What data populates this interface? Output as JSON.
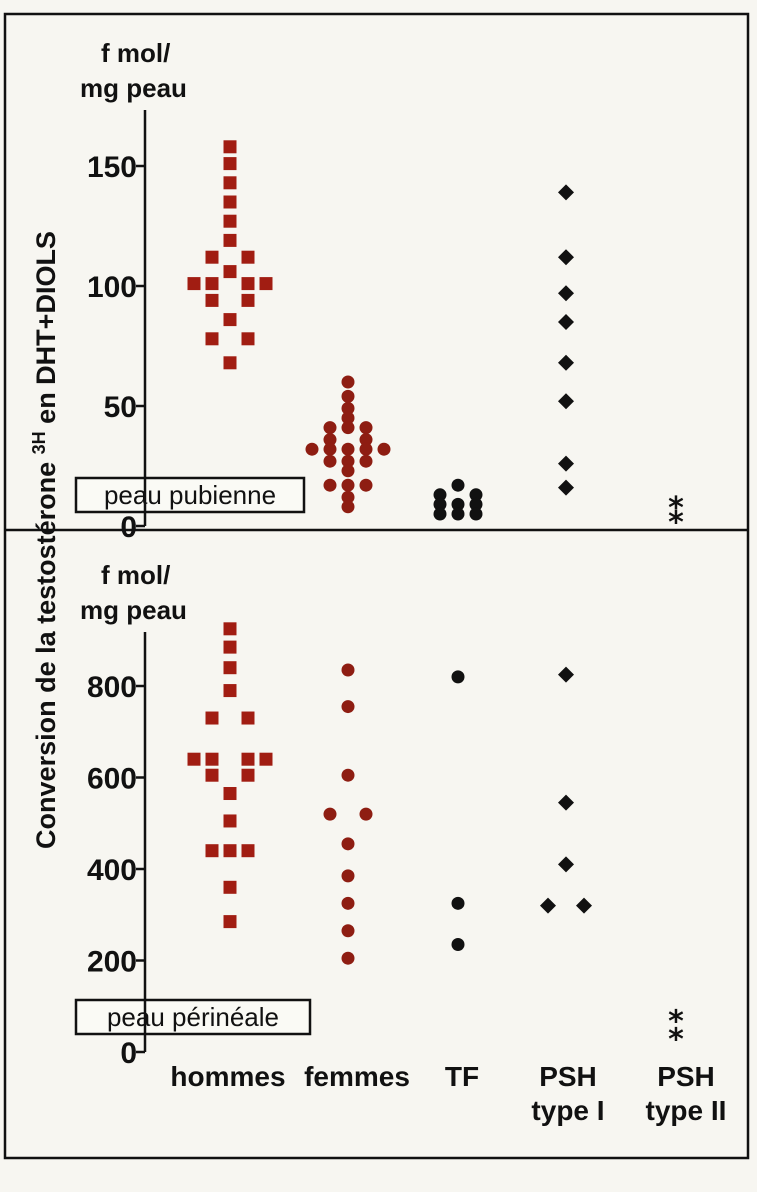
{
  "colors": {
    "hommes": "#a11d12",
    "femmes": "#8e1d12",
    "TF": "#111111",
    "PSH_type_I": "#111111",
    "PSH_type_II": "#111111"
  },
  "ylabel_prefix": "Conversion de la testostérone ",
  "ylabel_sup": "3H",
  "ylabel_suffix": " en DHT+DIOLS",
  "categories": [
    {
      "line1": "hommes",
      "line2": ""
    },
    {
      "line1": "femmes",
      "line2": ""
    },
    {
      "line1": "TF",
      "line2": ""
    },
    {
      "line1": "PSH",
      "line2": "type I"
    },
    {
      "line1": "PSH",
      "line2": "type II"
    }
  ],
  "chart_data": [
    {
      "type": "scatter",
      "panel": "top",
      "unit_line1": "f mol/",
      "unit_line2": "mg peau",
      "box_label": "peau pubienne",
      "ylim": [
        0,
        165
      ],
      "yticks": [
        0,
        50,
        100,
        150
      ],
      "ytick_labels": [
        "0",
        "50",
        "100",
        "150"
      ],
      "series": [
        {
          "category": "hommes",
          "marker": "square",
          "points": [
            [
              0,
              158
            ],
            [
              0,
              151
            ],
            [
              0,
              143
            ],
            [
              0,
              135
            ],
            [
              0,
              127
            ],
            [
              0,
              119
            ],
            [
              -1,
              112
            ],
            [
              1,
              112
            ],
            [
              0,
              106
            ],
            [
              -2,
              101
            ],
            [
              -1,
              101
            ],
            [
              1,
              101
            ],
            [
              2,
              101
            ],
            [
              -1,
              94
            ],
            [
              1,
              94
            ],
            [
              0,
              86
            ],
            [
              -1,
              78
            ],
            [
              1,
              78
            ],
            [
              0,
              68
            ]
          ]
        },
        {
          "category": "femmes",
          "marker": "circle",
          "points": [
            [
              0,
              60
            ],
            [
              0,
              54
            ],
            [
              0,
              49
            ],
            [
              0,
              45
            ],
            [
              -1,
              41
            ],
            [
              0,
              41
            ],
            [
              1,
              41
            ],
            [
              -1,
              36
            ],
            [
              1,
              36
            ],
            [
              -2,
              32
            ],
            [
              -1,
              32
            ],
            [
              0,
              32
            ],
            [
              1,
              32
            ],
            [
              2,
              32
            ],
            [
              -1,
              27
            ],
            [
              0,
              27
            ],
            [
              1,
              27
            ],
            [
              0,
              23
            ],
            [
              -1,
              17
            ],
            [
              0,
              17
            ],
            [
              1,
              17
            ],
            [
              0,
              12
            ],
            [
              0,
              8
            ]
          ]
        },
        {
          "category": "TF",
          "marker": "circle",
          "points": [
            [
              0,
              17
            ],
            [
              -1,
              13
            ],
            [
              1,
              13
            ],
            [
              -1,
              9
            ],
            [
              0,
              9
            ],
            [
              1,
              9
            ],
            [
              -1,
              5
            ],
            [
              0,
              5
            ],
            [
              1,
              5
            ]
          ]
        },
        {
          "category": "PSH type I",
          "marker": "diamond",
          "points": [
            [
              0,
              139
            ],
            [
              0,
              112
            ],
            [
              0,
              97
            ],
            [
              0,
              85
            ],
            [
              0,
              68
            ],
            [
              0,
              52
            ],
            [
              0,
              26
            ],
            [
              0,
              16
            ]
          ]
        },
        {
          "category": "PSH type II",
          "marker": "asterisk",
          "points": [
            [
              0,
              10
            ],
            [
              0,
              4
            ]
          ]
        }
      ]
    },
    {
      "type": "scatter",
      "panel": "bottom",
      "unit_line1": "f mol/",
      "unit_line2": "mg peau",
      "box_label": "peau périnéale",
      "ylim": [
        0,
        950
      ],
      "yticks": [
        0,
        200,
        400,
        600,
        800
      ],
      "ytick_labels": [
        "0",
        "200",
        "400",
        "600",
        "800"
      ],
      "series": [
        {
          "category": "hommes",
          "marker": "square",
          "points": [
            [
              0,
              925
            ],
            [
              0,
              885
            ],
            [
              0,
              840
            ],
            [
              0,
              790
            ],
            [
              -1,
              730
            ],
            [
              1,
              730
            ],
            [
              -2,
              640
            ],
            [
              -1,
              640
            ],
            [
              1,
              640
            ],
            [
              2,
              640
            ],
            [
              -1,
              605
            ],
            [
              1,
              605
            ],
            [
              0,
              565
            ],
            [
              0,
              505
            ],
            [
              0,
              440
            ],
            [
              -1,
              440
            ],
            [
              1,
              440
            ],
            [
              0,
              360
            ],
            [
              0,
              285
            ]
          ]
        },
        {
          "category": "femmes",
          "marker": "circle",
          "points": [
            [
              0,
              835
            ],
            [
              0,
              755
            ],
            [
              0,
              605
            ],
            [
              -1,
              520
            ],
            [
              1,
              520
            ],
            [
              0,
              455
            ],
            [
              0,
              385
            ],
            [
              0,
              325
            ],
            [
              0,
              265
            ],
            [
              0,
              205
            ]
          ]
        },
        {
          "category": "TF",
          "marker": "circle",
          "points": [
            [
              0,
              820
            ],
            [
              0,
              325
            ],
            [
              0,
              235
            ]
          ]
        },
        {
          "category": "PSH type I",
          "marker": "diamond",
          "points": [
            [
              0,
              825
            ],
            [
              0,
              545
            ],
            [
              0,
              410
            ],
            [
              -1,
              320
            ],
            [
              1,
              320
            ]
          ]
        },
        {
          "category": "PSH type II",
          "marker": "asterisk",
          "points": [
            [
              0,
              80
            ],
            [
              0,
              40
            ]
          ]
        }
      ]
    }
  ]
}
